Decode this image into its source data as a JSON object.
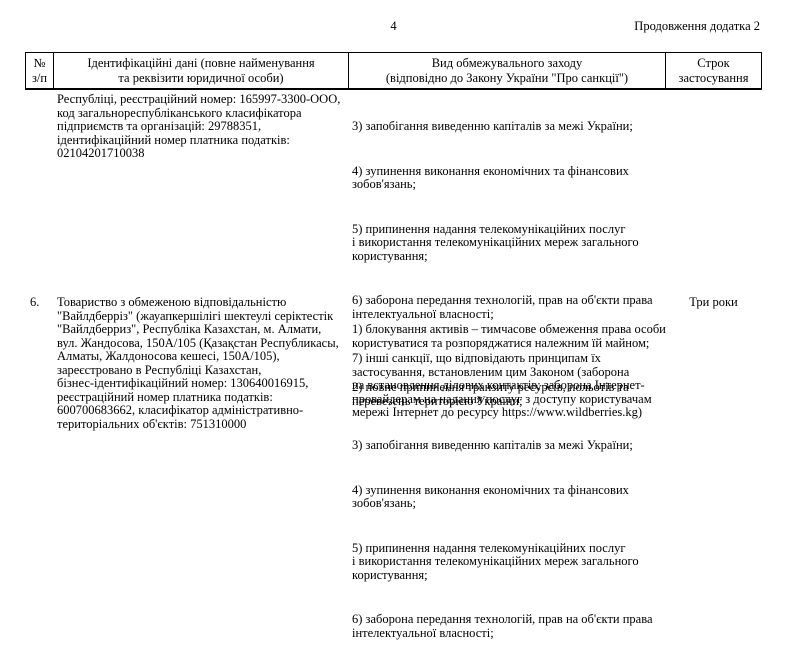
{
  "page": {
    "number": "4",
    "continuation_label": "Продовження додатка 2"
  },
  "table": {
    "headers": {
      "num": "№\nз/п",
      "id_data": "Ідентифікаційні дані (повне найменування\nта реквізити юридичної особи)",
      "measure": "Вид обмежувального заходу\n(відповідно до Закону України \"Про санкції\")",
      "duration": "Строк\nзастосування"
    },
    "rows": [
      {
        "num": "",
        "id_data": "Республіці, реєстраційний номер: 165997-3300-ООО,\nкод загальнореспубліканського класифікатора\nпідприємств та організацій: 29788351,\nідентифікаційний номер платника податків:\n02104201710038",
        "measures": [
          "3) запобігання виведенню капіталів за межі України;",
          "4) зупинення виконання економічних та фінансових\nзобов'язань;",
          "5) припинення надання телекомунікаційних послуг\nі використання телекомунікаційних мереж загального\nкористування;",
          "6) заборона передання технологій, прав на об'єкти права\nінтелектуальної власності;",
          "7) інші санкції, що відповідають принципам їх\nзастосування, встановленим цим Законом (заборона\nна встановлення ділових контактів; заборона Інтернет-\nпровайдерам на надання послуг з доступу користувачам\nмережі Інтернет до ресурсу https://www.wildberries.kg)"
        ],
        "duration": ""
      },
      {
        "num": "6.",
        "id_data": "Товариство з обмеженою відповідальністю\n\"Вайлдберріз\" (жауапкершілігі шектеулі серіктестік\n\"Вайлдберриз\", Республіка Казахстан, м. Алмати,\nвул. Жандосова, 150А/105 (Қазақстан Республикасы,\nАлматы, Жалдоносова кешесі, 150А/105),\nзареєстровано в Республіці Казахстан,\nбізнес-ідентифікаційний номер: 130640016915,\nреєстраційний номер платника податків:\n600700683662, класифікатор адміністративно-\nтериторіальних об'єктів: 751310000",
        "measures": [
          "1) блокування активів – тимчасове обмеження права особи\nкористуватися та розпоряджатися належним їй майном;",
          "2) повне припинення транзиту ресурсів, польотів та\nперевезень територією України;",
          "3) запобігання виведенню капіталів за межі України;",
          "4) зупинення виконання економічних та фінансових\nзобов'язань;",
          "5) припинення надання телекомунікаційних послуг\nі використання телекомунікаційних мереж загального\nкористування;",
          "6) заборона передання технологій, прав на об'єкти права\nінтелектуальної власності;"
        ],
        "duration": "Три роки"
      }
    ]
  }
}
